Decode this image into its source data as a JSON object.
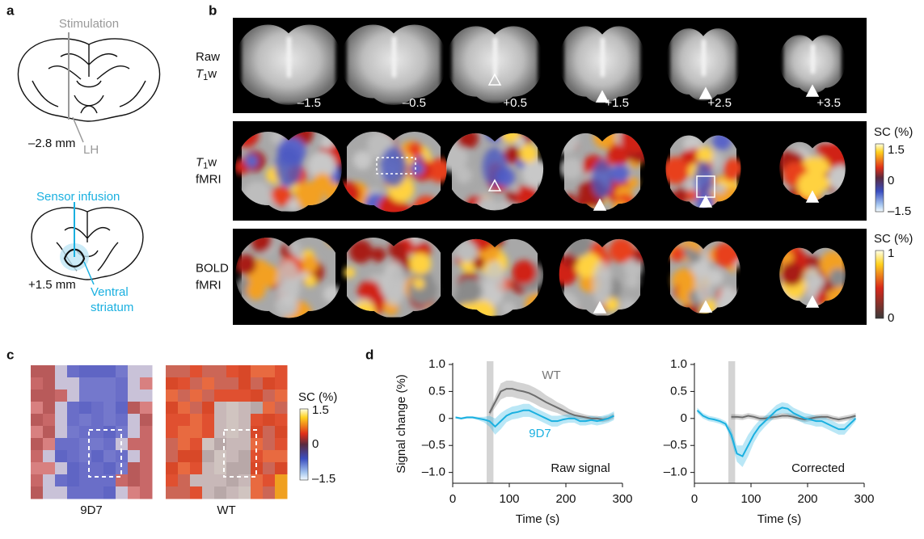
{
  "panels": {
    "a": "a",
    "b": "b",
    "c": "c",
    "d": "d"
  },
  "panel_a": {
    "stimulation": "Stimulation",
    "lh": "LH",
    "coord_top": "–2.8 mm",
    "sensor": "Sensor infusion",
    "coord_bottom": "+1.5 mm",
    "region": [
      "Ventral",
      "striatum"
    ]
  },
  "panel_b": {
    "rows": [
      {
        "line1": [
          "Raw"
        ],
        "line2": [
          "T",
          "1",
          "w"
        ]
      },
      {
        "line1": [
          "T",
          "1",
          "w"
        ],
        "line2": [
          "fMRI"
        ]
      },
      {
        "line1": [
          "BOLD"
        ],
        "line2": [
          "fMRI"
        ]
      }
    ],
    "slice_labels": [
      "–1.5",
      "–0.5",
      "+0.5",
      "+1.5",
      "+2.5",
      "+3.5"
    ],
    "colorbars": [
      {
        "title": "SC (%)",
        "labels": [
          "1.5",
          "0",
          "–1.5"
        ]
      },
      {
        "title": "SC (%)",
        "labels": [
          "1",
          "0"
        ]
      }
    ]
  },
  "panel_c": {
    "maps": [
      "9D7",
      "WT"
    ],
    "colorbar": {
      "title": "SC (%)",
      "labels": [
        "1.5",
        "0",
        "–1.5"
      ]
    }
  },
  "chart_data": [
    {
      "type": "line",
      "x": [
        5,
        15,
        25,
        35,
        45,
        55,
        65,
        75,
        85,
        95,
        105,
        115,
        125,
        135,
        145,
        155,
        165,
        175,
        185,
        195,
        205,
        215,
        225,
        235,
        245,
        255,
        265,
        275,
        285
      ],
      "xlim": [
        0,
        300
      ],
      "xticks": [
        0,
        100,
        200,
        300
      ],
      "ylim": [
        -1.2,
        1.0
      ],
      "yticks": [
        {
          "value": 1,
          "label": "1.0"
        },
        0.5,
        0,
        {
          "value": -0.5,
          "label": "–0.5"
        },
        {
          "value": -1,
          "label": "–1.0"
        }
      ],
      "xlabel": "Time (s)",
      "ylabel": "Signal change (%)",
      "highlight_x": [
        60,
        72
      ],
      "series": [
        {
          "name": "WT",
          "color": "#6d6d6d",
          "values": [
            null,
            null,
            null,
            null,
            null,
            null,
            0.1,
            0.3,
            0.5,
            0.55,
            0.55,
            0.52,
            0.5,
            0.47,
            0.42,
            0.36,
            0.3,
            0.25,
            0.2,
            0.15,
            0.1,
            0.06,
            0.04,
            0.02,
            0.0,
            0.0,
            -0.02,
            0.0,
            0.05
          ],
          "errors": [
            null,
            null,
            null,
            null,
            null,
            null,
            0.05,
            0.1,
            0.15,
            0.15,
            0.15,
            0.15,
            0.15,
            0.15,
            0.15,
            0.15,
            0.13,
            0.12,
            0.1,
            0.1,
            0.08,
            0.07,
            0.06,
            0.05,
            0.05,
            0.05,
            0.05,
            0.05,
            0.05
          ]
        },
        {
          "name": "9D7",
          "color": "#1ab0e0",
          "values": [
            0.02,
            0.0,
            0.02,
            0.02,
            0.0,
            -0.02,
            -0.05,
            -0.15,
            -0.05,
            0.05,
            0.1,
            0.12,
            0.15,
            0.15,
            0.1,
            0.05,
            0.0,
            -0.05,
            -0.05,
            -0.02,
            0.0,
            0.0,
            -0.05,
            -0.05,
            -0.03,
            -0.05,
            -0.03,
            0.0,
            0.05
          ],
          "errors": [
            0.02,
            0.02,
            0.02,
            0.02,
            0.03,
            0.05,
            0.1,
            0.15,
            0.15,
            0.12,
            0.12,
            0.12,
            0.12,
            0.12,
            0.1,
            0.1,
            0.1,
            0.1,
            0.1,
            0.08,
            0.08,
            0.08,
            0.08,
            0.08,
            0.08,
            0.08,
            0.08,
            0.08,
            0.08
          ]
        }
      ],
      "annotations": [
        "WT",
        "9D7",
        "Raw signal"
      ]
    },
    {
      "type": "line",
      "x": [
        5,
        15,
        25,
        35,
        45,
        55,
        65,
        75,
        85,
        95,
        105,
        115,
        125,
        135,
        145,
        155,
        165,
        175,
        185,
        195,
        205,
        215,
        225,
        235,
        245,
        255,
        265,
        275,
        285
      ],
      "xlim": [
        0,
        300
      ],
      "xticks": [
        0,
        100,
        200,
        300
      ],
      "ylim": [
        -1.2,
        1.0
      ],
      "yticks": [
        {
          "value": 1,
          "label": "1.0"
        },
        0.5,
        0,
        {
          "value": -0.5,
          "label": "–0.5"
        },
        {
          "value": -1,
          "label": "–1.0"
        }
      ],
      "xlabel": "Time (s)",
      "highlight_x": [
        60,
        72
      ],
      "series": [
        {
          "name": "WT",
          "color": "#6d6d6d",
          "values": [
            null,
            null,
            null,
            null,
            null,
            null,
            0.03,
            0.03,
            0.02,
            0.05,
            0.03,
            0.0,
            0.0,
            0.02,
            0.03,
            0.05,
            0.05,
            0.03,
            0.0,
            -0.02,
            0.0,
            0.02,
            0.03,
            0.03,
            0.0,
            -0.02,
            0.0,
            0.02,
            0.05
          ],
          "errors": [
            null,
            null,
            null,
            null,
            null,
            null,
            0.05,
            0.05,
            0.05,
            0.05,
            0.05,
            0.05,
            0.05,
            0.05,
            0.05,
            0.05,
            0.05,
            0.05,
            0.05,
            0.05,
            0.05,
            0.05,
            0.05,
            0.05,
            0.05,
            0.05,
            0.05,
            0.05,
            0.05
          ]
        },
        {
          "name": "9D7",
          "color": "#1ab0e0",
          "values": [
            0.15,
            0.05,
            0.0,
            -0.02,
            -0.05,
            -0.1,
            -0.3,
            -0.65,
            -0.7,
            -0.5,
            -0.3,
            -0.15,
            -0.05,
            0.05,
            0.15,
            0.2,
            0.18,
            0.1,
            0.05,
            0.0,
            -0.02,
            -0.05,
            -0.05,
            -0.1,
            -0.15,
            -0.2,
            -0.2,
            -0.1,
            0.0
          ],
          "errors": [
            0.05,
            0.05,
            0.05,
            0.05,
            0.05,
            0.05,
            0.1,
            0.15,
            0.2,
            0.2,
            0.15,
            0.12,
            0.1,
            0.1,
            0.1,
            0.1,
            0.1,
            0.1,
            0.1,
            0.1,
            0.1,
            0.1,
            0.1,
            0.1,
            0.1,
            0.1,
            0.1,
            0.08,
            0.05
          ]
        }
      ],
      "annotations": [
        "Corrected"
      ]
    }
  ]
}
